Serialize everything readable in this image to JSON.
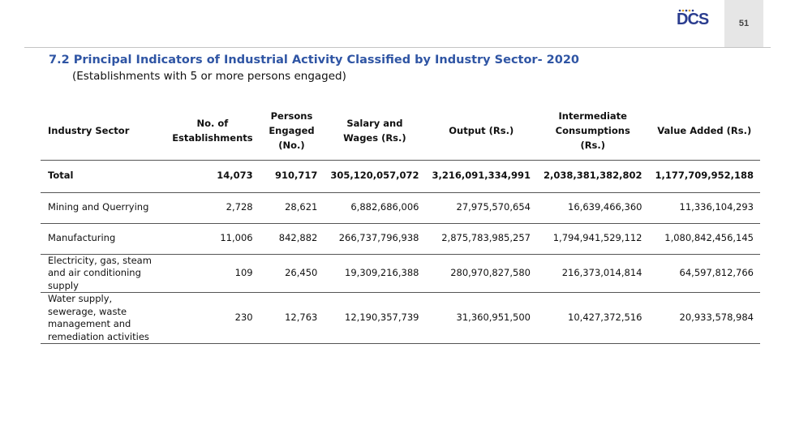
{
  "logo": {
    "text": "DCS",
    "color": "#2b3d8f"
  },
  "page_number": "51",
  "title": "7.2 Principal Indicators of Industrial Activity Classified by Industry Sector- 2020",
  "subtitle": "(Establishments with 5 or more persons engaged)",
  "colors": {
    "title": "#2f55a4",
    "page_box": "#e6e6e6"
  },
  "table": {
    "headers": [
      "Industry Sector",
      "No. of Establishments",
      "Persons Engaged (No.)",
      "Salary and Wages (Rs.)",
      "Output (Rs.)",
      "Intermediate Consumptions (Rs.)",
      "Value Added (Rs.)"
    ],
    "rows": [
      [
        "Total",
        "14,073",
        "910,717",
        "305,120,057,072",
        "3,216,091,334,991",
        "2,038,381,382,802",
        "1,177,709,952,188"
      ],
      [
        "Mining and Querrying",
        "2,728",
        "28,621",
        "6,882,686,006",
        "27,975,570,654",
        "16,639,466,360",
        "11,336,104,293"
      ],
      [
        "Manufacturing",
        "11,006",
        "842,882",
        "266,737,796,938",
        "2,875,783,985,257",
        "1,794,941,529,112",
        "1,080,842,456,145"
      ],
      [
        "Electricity, gas, steam and air conditioning supply",
        "109",
        "26,450",
        "19,309,216,388",
        "280,970,827,580",
        "216,373,014,814",
        "64,597,812,766"
      ],
      [
        "Water supply, sewerage, waste management and remediation activities",
        "230",
        "12,763",
        "12,190,357,739",
        "31,360,951,500",
        "10,427,372,516",
        "20,933,578,984"
      ]
    ]
  }
}
